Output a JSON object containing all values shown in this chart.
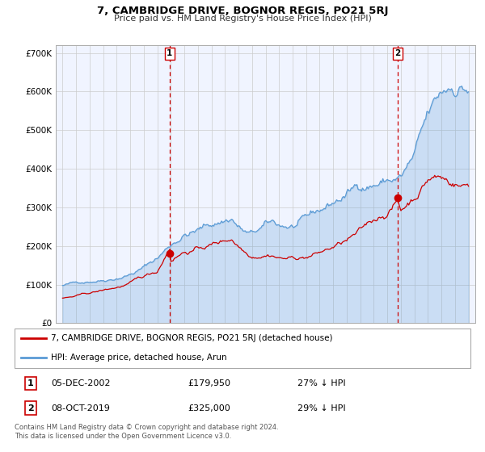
{
  "title": "7, CAMBRIDGE DRIVE, BOGNOR REGIS, PO21 5RJ",
  "subtitle": "Price paid vs. HM Land Registry's House Price Index (HPI)",
  "legend_line1": "7, CAMBRIDGE DRIVE, BOGNOR REGIS, PO21 5RJ (detached house)",
  "legend_line2": "HPI: Average price, detached house, Arun",
  "footer": "Contains HM Land Registry data © Crown copyright and database right 2024.\nThis data is licensed under the Open Government Licence v3.0.",
  "transaction1_date": "05-DEC-2002",
  "transaction1_price": "£179,950",
  "transaction1_hpi": "27% ↓ HPI",
  "transaction2_date": "08-OCT-2019",
  "transaction2_price": "£325,000",
  "transaction2_hpi": "29% ↓ HPI",
  "sale1_year": 2002.917,
  "sale1_price": 179950,
  "sale2_year": 2019.75,
  "sale2_price": 325000,
  "hpi_color": "#5b9bd5",
  "hpi_fill_color": "#ddeeff",
  "sale_color": "#cc0000",
  "dashed_line_color": "#cc0000",
  "ylim": [
    0,
    720000
  ],
  "xlim_start": 1994.5,
  "xlim_end": 2025.5,
  "yticks": [
    0,
    100000,
    200000,
    300000,
    400000,
    500000,
    600000,
    700000
  ],
  "xticks": [
    1995,
    1996,
    1997,
    1998,
    1999,
    2000,
    2001,
    2002,
    2003,
    2004,
    2005,
    2006,
    2007,
    2008,
    2009,
    2010,
    2011,
    2012,
    2013,
    2014,
    2015,
    2016,
    2017,
    2018,
    2019,
    2020,
    2021,
    2022,
    2023,
    2024,
    2025
  ],
  "bg_color": "#f0f4ff",
  "grid_color": "#cccccc"
}
